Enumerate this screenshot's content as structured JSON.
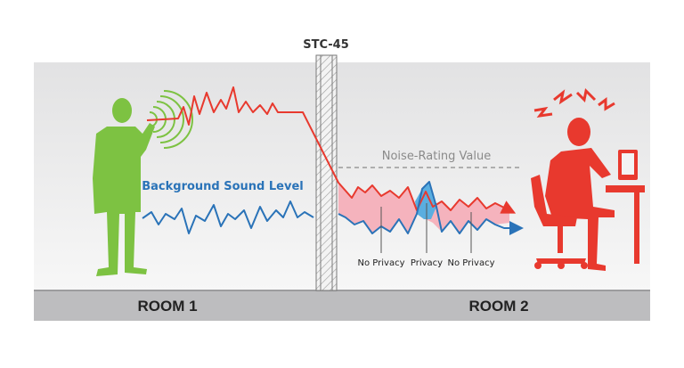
{
  "wall": {
    "label": "STC-45"
  },
  "noise_rating": {
    "label": "Noise-Rating Value"
  },
  "background": {
    "label": "Background Sound Level"
  },
  "annotations": [
    "No Privacy",
    "Privacy",
    "No Privacy"
  ],
  "rooms": [
    "ROOM 1",
    "ROOM 2"
  ]
}
